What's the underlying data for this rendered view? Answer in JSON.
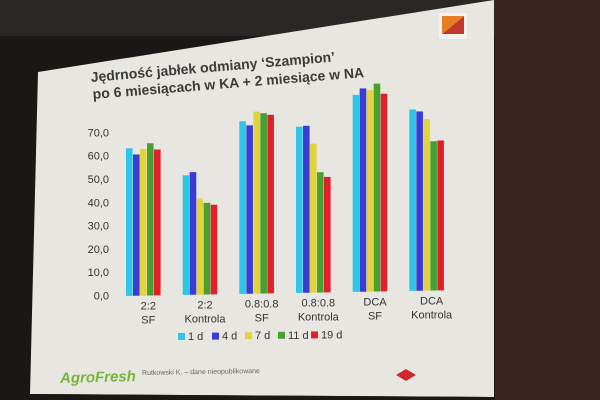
{
  "slide": {
    "title_line1": "Jędrność jabłek odmiany ‘Szampion’",
    "title_line2": "po 6 miesiącach w KA + 2 miesiące w NA",
    "logo_text": "AgroFresh",
    "footnote": "Rutkowski K. – dane nieopublikowane"
  },
  "colors": {
    "slide_bg": "#e8e6e0",
    "page_bg": "#1a1816"
  },
  "chart_data": {
    "type": "bar",
    "title": "Jędrność jabłek odmiany ‘Szampion’ po 6 miesiącach w KA + 2 miesiące w NA",
    "xlabel": "",
    "ylabel": "",
    "categories": [
      [
        "2:2",
        "SF"
      ],
      [
        "2:2",
        "Kontrola"
      ],
      [
        "0.8:0.8",
        "SF"
      ],
      [
        "0.8:0.8",
        "Kontrola"
      ],
      [
        "DCA",
        "SF"
      ],
      [
        "DCA",
        "Kontrola"
      ]
    ],
    "ylim": [
      0,
      70
    ],
    "yticks": [
      "0,0",
      "10,0",
      "20,0",
      "30,0",
      "40,0",
      "50,0",
      "60,0",
      "70,0"
    ],
    "grid": false,
    "legend_position": "bottom",
    "series": [
      {
        "name": "1 d",
        "color": "#2ec6e8",
        "values": [
          63,
          49,
          68,
          63,
          72,
          64
        ]
      },
      {
        "name": "4 d",
        "color": "#3b3bd6",
        "values": [
          60,
          50,
          66,
          63,
          74,
          63
        ]
      },
      {
        "name": "7 d",
        "color": "#e2d33c",
        "values": [
          62,
          39,
          71,
          56,
          73,
          60
        ]
      },
      {
        "name": "11 d",
        "color": "#48a032",
        "values": [
          64,
          37,
          70,
          45,
          75,
          52
        ]
      },
      {
        "name": "19 d",
        "color": "#e0202a",
        "values": [
          61,
          36,
          69,
          43,
          71,
          52
        ]
      }
    ]
  }
}
